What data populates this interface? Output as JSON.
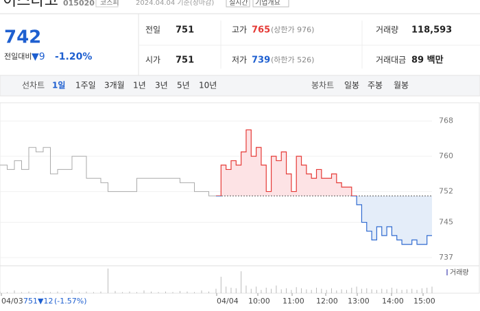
{
  "header": {
    "name": "이스타코",
    "code": "015020",
    "market": "코스피",
    "date": "2024.04.04 기준(장마감)",
    "realtime": "실시간",
    "company_info": "기업개요"
  },
  "price": {
    "current": "742",
    "change_label": "전일대비",
    "change": "▼9",
    "change_rate": "-1.20%"
  },
  "stats": [
    {
      "label": "전일",
      "value": "751"
    },
    {
      "label": "고가",
      "value": "765",
      "note": "(상한가 976)"
    },
    {
      "label": "거래량",
      "value": "118,593"
    },
    {
      "label": "시가",
      "value": "751"
    },
    {
      "label": "저가",
      "value": "739",
      "note": "(하한가 526)"
    },
    {
      "label": "거래대금",
      "value": "89 백만"
    }
  ],
  "tabs": {
    "line_label": "선차트",
    "line": [
      "1일",
      "1주일",
      "3개월",
      "1년",
      "3년",
      "5년",
      "10년"
    ],
    "candle_label": "봉차트",
    "candle": [
      "일봉",
      "주봉",
      "월봉"
    ]
  },
  "chart_data": {
    "type": "line",
    "ylim": [
      735.6,
      770.6
    ],
    "yticks": [
      768,
      760,
      752,
      745,
      737
    ],
    "grid": true,
    "base": 751,
    "x_labels": [
      "04/03",
      "04/04",
      "10:00",
      "11:00",
      "12:00",
      "13:00",
      "14:00",
      "15:00"
    ],
    "series": [
      {
        "color": "#aaaaaa",
        "values": [
          758,
          757,
          759,
          757,
          762,
          761,
          762,
          756,
          757,
          757,
          760,
          760,
          755,
          755,
          754,
          752,
          752,
          752,
          752,
          755,
          755,
          755,
          755,
          755,
          755,
          754,
          754,
          752,
          752,
          751,
          751
        ]
      },
      {
        "color": "#e53935",
        "down_color": "#2f6ad0",
        "values": [
          751,
          758,
          757,
          759,
          758,
          761,
          766,
          760,
          762,
          758,
          752,
          760,
          759,
          761,
          756,
          752,
          760,
          758,
          756,
          755,
          757,
          755,
          755,
          756,
          754,
          753,
          753,
          751,
          749,
          745,
          743,
          741,
          744,
          742,
          744,
          742,
          741,
          740,
          740,
          741,
          740,
          740,
          742,
          742
        ]
      }
    ],
    "volume_legend": "거래량",
    "volume": [
      [
        3,
        2,
        5,
        2,
        3,
        2,
        4,
        2,
        3,
        2,
        6,
        2,
        3,
        2,
        3,
        45,
        4,
        2,
        3,
        2,
        5,
        3,
        2,
        3,
        2,
        4,
        3,
        2,
        5,
        3,
        6
      ],
      [
        8,
        30,
        12,
        10,
        9,
        40,
        14,
        8,
        12,
        6,
        10,
        8,
        14,
        7,
        9,
        6,
        11,
        9,
        7,
        6,
        10,
        8,
        6,
        9,
        5,
        7,
        6,
        10,
        12,
        8,
        9,
        7,
        6,
        8,
        7,
        10,
        8,
        6,
        7,
        8,
        6,
        9,
        10,
        12
      ]
    ],
    "footer": {
      "date": "04/03",
      "price": "751",
      "change": "▼12",
      "rate": "(-1.57%)"
    }
  }
}
